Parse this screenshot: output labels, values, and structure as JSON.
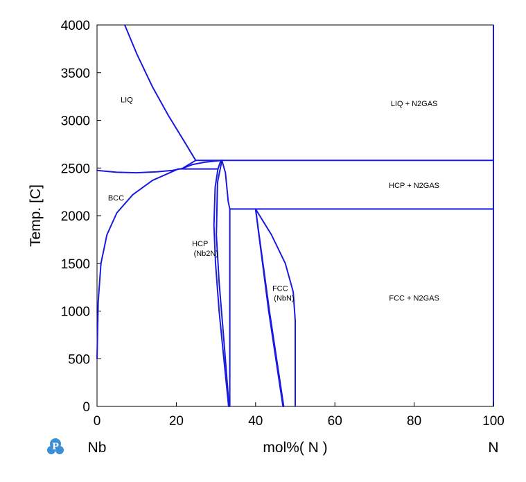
{
  "chart_data": {
    "type": "line",
    "title": "",
    "xlabel": "mol%( N )",
    "ylabel": "Temp. [C]",
    "x_left_label": "Nb",
    "x_right_label": "N",
    "xlim": [
      0,
      100
    ],
    "ylim": [
      0,
      4000
    ],
    "x_ticks": [
      "0",
      "20",
      "40",
      "60",
      "80",
      "100"
    ],
    "y_ticks": [
      "0",
      "500",
      "1000",
      "1500",
      "2000",
      "2500",
      "3000",
      "3500",
      "4000"
    ],
    "grid": false,
    "line_color": "#1a1adf",
    "logo": "pandat-p-logo",
    "regions": [
      {
        "text": "LIQ",
        "x": 7.5,
        "y": 3190
      },
      {
        "text": "LIQ + N2GAS",
        "x": 80,
        "y": 3150
      },
      {
        "text": "BCC",
        "x": 4.8,
        "y": 2160
      },
      {
        "text": "HCP + N2GAS",
        "x": 80,
        "y": 2290
      },
      {
        "text": "HCP",
        "x": 26,
        "y": 1680
      },
      {
        "text": "(Nb2N)",
        "x": 27.5,
        "y": 1580
      },
      {
        "text": "FCC",
        "x": 46.2,
        "y": 1210
      },
      {
        "text": "(NbN)",
        "x": 47.2,
        "y": 1110
      },
      {
        "text": "FCC + N2GAS",
        "x": 80,
        "y": 1110
      }
    ],
    "series": [
      {
        "points": [
          [
            7,
            4000
          ],
          [
            10,
            3700
          ],
          [
            14,
            3350
          ],
          [
            18,
            3050
          ],
          [
            22,
            2780
          ],
          [
            24.9,
            2580
          ]
        ]
      },
      {
        "points": [
          [
            0,
            2475
          ],
          [
            5,
            2455
          ],
          [
            10,
            2450
          ],
          [
            15,
            2460
          ],
          [
            19,
            2475
          ],
          [
            21.5,
            2495
          ],
          [
            24.9,
            2580
          ]
        ]
      },
      {
        "points": [
          [
            21.5,
            2495
          ],
          [
            24,
            2535
          ],
          [
            27,
            2560
          ],
          [
            31.5,
            2580
          ]
        ]
      },
      {
        "points": [
          [
            20.5,
            2490
          ],
          [
            30.5,
            2490
          ]
        ]
      },
      {
        "points": [
          [
            0,
            500
          ],
          [
            0.3,
            1100
          ],
          [
            1,
            1500
          ],
          [
            2.5,
            1800
          ],
          [
            5,
            2030
          ],
          [
            9,
            2220
          ],
          [
            14,
            2370
          ],
          [
            20.5,
            2490
          ]
        ]
      },
      {
        "points": [
          [
            24.9,
            2580
          ],
          [
            100,
            2580
          ]
        ]
      },
      {
        "points": [
          [
            33.5,
            2070
          ],
          [
            100,
            2070
          ]
        ]
      },
      {
        "points": [
          [
            30.5,
            2490
          ],
          [
            31.2,
            2575
          ],
          [
            31.5,
            2580
          ]
        ]
      },
      {
        "points": [
          [
            30.5,
            2490
          ],
          [
            29.8,
            2300
          ],
          [
            29.5,
            1900
          ],
          [
            29.9,
            1500
          ],
          [
            30.8,
            1000
          ],
          [
            32,
            500
          ],
          [
            33.2,
            0
          ]
        ]
      },
      {
        "points": [
          [
            31.5,
            2580
          ],
          [
            30.4,
            2350
          ],
          [
            30.1,
            1800
          ],
          [
            30.8,
            1300
          ],
          [
            32,
            700
          ],
          [
            33.3,
            0
          ]
        ]
      },
      {
        "points": [
          [
            31.5,
            2580
          ],
          [
            32.4,
            2450
          ],
          [
            33.1,
            2150
          ],
          [
            33.5,
            2070
          ]
        ]
      },
      {
        "points": [
          [
            33.5,
            2070
          ],
          [
            33.5,
            0
          ]
        ]
      },
      {
        "points": [
          [
            40,
            2070
          ],
          [
            43.5,
            1000
          ],
          [
            47.1,
            0
          ]
        ]
      },
      {
        "points": [
          [
            40,
            2070
          ],
          [
            43.3,
            1000
          ],
          [
            46.9,
            0
          ]
        ]
      },
      {
        "points": [
          [
            40,
            2070
          ],
          [
            44,
            1800
          ],
          [
            47.5,
            1500
          ],
          [
            49.5,
            1200
          ],
          [
            50,
            900
          ],
          [
            50,
            0
          ]
        ]
      }
    ]
  }
}
